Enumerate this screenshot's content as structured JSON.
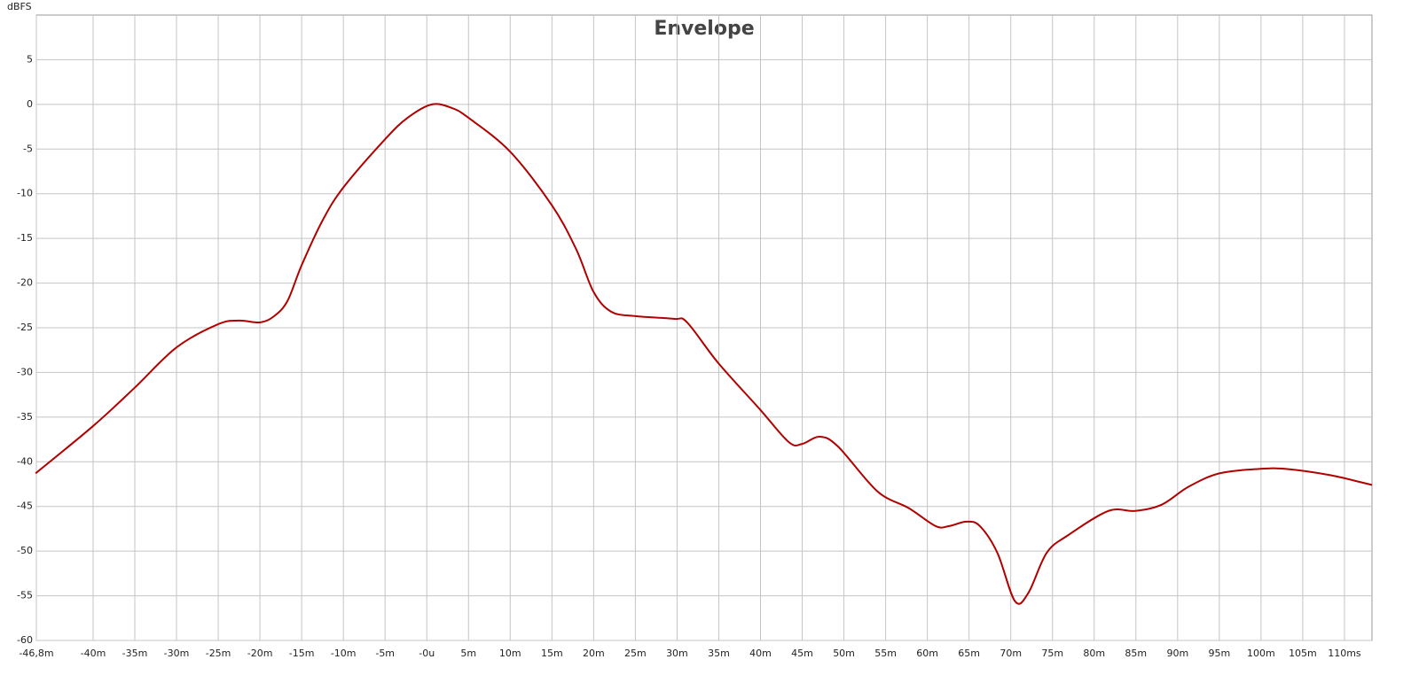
{
  "chart_data": {
    "type": "line",
    "title": "Envelope",
    "y_label": "dBFS",
    "xlim": [
      -46.8,
      113.3
    ],
    "ylim": [
      -60,
      10
    ],
    "xticks": [
      {
        "value": -46.8,
        "label": "-46,8m"
      },
      {
        "value": -40,
        "label": "-40m"
      },
      {
        "value": -35,
        "label": "-35m"
      },
      {
        "value": -30,
        "label": "-30m"
      },
      {
        "value": -25,
        "label": "-25m"
      },
      {
        "value": -20,
        "label": "-20m"
      },
      {
        "value": -15,
        "label": "-15m"
      },
      {
        "value": -10,
        "label": "-10m"
      },
      {
        "value": -5,
        "label": "-5m"
      },
      {
        "value": 0,
        "label": "-0u"
      },
      {
        "value": 5,
        "label": "5m"
      },
      {
        "value": 10,
        "label": "10m"
      },
      {
        "value": 15,
        "label": "15m"
      },
      {
        "value": 20,
        "label": "20m"
      },
      {
        "value": 25,
        "label": "25m"
      },
      {
        "value": 30,
        "label": "30m"
      },
      {
        "value": 35,
        "label": "35m"
      },
      {
        "value": 40,
        "label": "40m"
      },
      {
        "value": 45,
        "label": "45m"
      },
      {
        "value": 50,
        "label": "50m"
      },
      {
        "value": 55,
        "label": "55m"
      },
      {
        "value": 60,
        "label": "60m"
      },
      {
        "value": 65,
        "label": "65m"
      },
      {
        "value": 70,
        "label": "70m"
      },
      {
        "value": 75,
        "label": "75m"
      },
      {
        "value": 80,
        "label": "80m"
      },
      {
        "value": 85,
        "label": "85m"
      },
      {
        "value": 90,
        "label": "90m"
      },
      {
        "value": 95,
        "label": "95m"
      },
      {
        "value": 100,
        "label": "100m"
      },
      {
        "value": 105,
        "label": "105m"
      },
      {
        "value": 110,
        "label": "110ms"
      }
    ],
    "yticks": [
      5,
      0,
      -5,
      -10,
      -15,
      -20,
      -25,
      -30,
      -35,
      -40,
      -45,
      -50,
      -55,
      -60
    ],
    "grid": true,
    "series": [
      {
        "color": "#b00000",
        "x": [
          -46.9,
          -40,
          -35,
          -30,
          -25,
          -22.5,
          -20,
          -18.3,
          -16.7,
          -15,
          -12.5,
          -10,
          -5,
          -2.3,
          0.6,
          3,
          5,
          10,
          15,
          17.9,
          20,
          22.1,
          25,
          29.6,
          31.2,
          34.9,
          39.9,
          43.4,
          45,
          47.1,
          49.3,
          54,
          57.8,
          61,
          62.6,
          64.7,
          66.3,
          68.4,
          70.5,
          72.1,
          74.3,
          76.9,
          81.7,
          84.9,
          88.1,
          91.3,
          95,
          99.8,
          103,
          108.3,
          113.3
        ],
        "values": [
          -41.3,
          -36.0,
          -31.7,
          -27.2,
          -24.6,
          -24.2,
          -24.4,
          -23.7,
          -22,
          -18,
          -13,
          -9.3,
          -3.9,
          -1.5,
          0,
          -0.4,
          -1.5,
          -5.3,
          -11.3,
          -16.2,
          -21,
          -23.2,
          -23.7,
          -24,
          -24.4,
          -28.9,
          -34.1,
          -37.8,
          -38,
          -37.2,
          -38.3,
          -43.3,
          -45.2,
          -47.2,
          -47.2,
          -46.7,
          -47.2,
          -50.2,
          -55.6,
          -54.7,
          -50.2,
          -48.2,
          -45.5,
          -45.5,
          -44.8,
          -42.8,
          -41.3,
          -40.8,
          -40.8,
          -41.5,
          -42.6
        ]
      }
    ]
  }
}
